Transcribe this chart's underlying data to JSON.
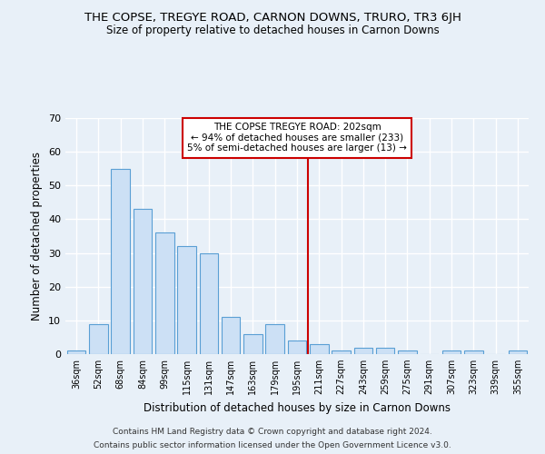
{
  "title": "THE COPSE, TREGYE ROAD, CARNON DOWNS, TRURO, TR3 6JH",
  "subtitle": "Size of property relative to detached houses in Carnon Downs",
  "xlabel": "Distribution of detached houses by size in Carnon Downs",
  "ylabel": "Number of detached properties",
  "footer_line1": "Contains HM Land Registry data © Crown copyright and database right 2024.",
  "footer_line2": "Contains public sector information licensed under the Open Government Licence v3.0.",
  "categories": [
    "36sqm",
    "52sqm",
    "68sqm",
    "84sqm",
    "99sqm",
    "115sqm",
    "131sqm",
    "147sqm",
    "163sqm",
    "179sqm",
    "195sqm",
    "211sqm",
    "227sqm",
    "243sqm",
    "259sqm",
    "275sqm",
    "291sqm",
    "307sqm",
    "323sqm",
    "339sqm",
    "355sqm"
  ],
  "values": [
    1,
    9,
    55,
    43,
    36,
    32,
    30,
    11,
    6,
    9,
    4,
    3,
    1,
    2,
    2,
    1,
    0,
    1,
    1,
    0,
    1
  ],
  "bar_color_face": "#cce0f5",
  "bar_color_edge": "#5a9fd4",
  "bg_color": "#e8f0f8",
  "grid_color": "#ffffff",
  "annotation_text": "THE COPSE TREGYE ROAD: 202sqm\n← 94% of detached houses are smaller (233)\n5% of semi-detached houses are larger (13) →",
  "vline_color": "#cc0000",
  "box_edge_color": "#cc0000",
  "ylim": [
    0,
    70
  ],
  "yticks": [
    0,
    10,
    20,
    30,
    40,
    50,
    60,
    70
  ],
  "vline_x": 10.5
}
